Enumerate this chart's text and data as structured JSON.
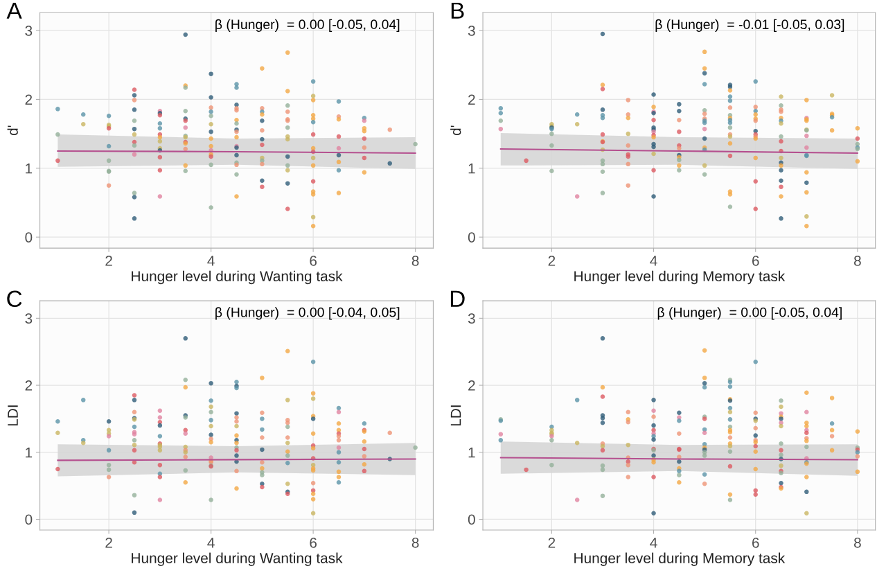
{
  "chart_data": [
    {
      "type": "scatter",
      "title": "A",
      "xlabel": "Hunger level during Wanting task",
      "ylabel": "d'",
      "annotations": [
        "β (Hunger)  = 0.00 [-0.05, 0.04]"
      ],
      "xlim": [
        0.65,
        8.35
      ],
      "ylim": [
        -0.16,
        3.26
      ],
      "xticks": [
        2,
        4,
        6,
        8
      ],
      "yticks": [
        0,
        1,
        2,
        3
      ],
      "grid": true,
      "series": [
        {
          "marker": "circle",
          "x": [
            1,
            1,
            1,
            1.5,
            1.5,
            2,
            2,
            2,
            2,
            2,
            2,
            2,
            2,
            2,
            2.5,
            2.5,
            2.5,
            2.5,
            2.5,
            2.5,
            2.5,
            2.5,
            2.5,
            2.5,
            2.5,
            2.5,
            2.5,
            3,
            3,
            3,
            3,
            3,
            3,
            3,
            3,
            3,
            3,
            3,
            3,
            3,
            3.5,
            3.5,
            3.5,
            3.5,
            3.5,
            3.5,
            3.5,
            3.5,
            3.5,
            3.5,
            3.5,
            3.5,
            3.5,
            3.5,
            4,
            4,
            4,
            4,
            4,
            4,
            4,
            4,
            4,
            4,
            4,
            4,
            4,
            4,
            4.5,
            4.5,
            4.5,
            4.5,
            4.5,
            4.5,
            4.5,
            4.5,
            4.5,
            4.5,
            4.5,
            4.5,
            4.5,
            4.5,
            4.5,
            4.5,
            4.5,
            5,
            5,
            5,
            5,
            5,
            5,
            5,
            5,
            5,
            5,
            5,
            5,
            5,
            5.5,
            5.5,
            5.5,
            5.5,
            5.5,
            5.5,
            5.5,
            5.5,
            5.5,
            5.5,
            5.5,
            5.5,
            5.5,
            5.5,
            6,
            6,
            6,
            6,
            6,
            6,
            6,
            6,
            6,
            6,
            6,
            6,
            6,
            6,
            6,
            6,
            6.5,
            6.5,
            6.5,
            6.5,
            6.5,
            6.5,
            6.5,
            6.5,
            6.5,
            7,
            7,
            7,
            7,
            7,
            7,
            7,
            7,
            7.5,
            7.5,
            8
          ],
          "values": [
            1.86,
            1.49,
            1.11,
            1.78,
            1.64,
            1.76,
            1.63,
            1.61,
            1.58,
            1.32,
            1.11,
            0.96,
            0.95,
            0.75,
            2.14,
            2.06,
            1.99,
            1.85,
            1.69,
            1.57,
            1.49,
            1.38,
            1.33,
            1.2,
            0.64,
            0.58,
            0.27,
            1.83,
            1.8,
            1.77,
            1.65,
            1.58,
            1.49,
            1.45,
            1.39,
            1.29,
            1.26,
            1.16,
            0.97,
            0.59,
            2.94,
            2.2,
            2.17,
            1.83,
            1.72,
            1.69,
            1.59,
            1.47,
            1.45,
            1.38,
            1.36,
            1.28,
            1.04,
            0.96,
            2.37,
            2.03,
            1.88,
            1.82,
            1.76,
            1.64,
            1.53,
            1.43,
            1.32,
            1.26,
            1.2,
            1.17,
            1.05,
            0.43,
            2.22,
            2.17,
            1.92,
            1.87,
            1.84,
            1.7,
            1.65,
            1.56,
            1.53,
            1.45,
            1.32,
            1.3,
            1.19,
            1.08,
            1.05,
            0.91,
            0.59,
            2.45,
            1.87,
            1.82,
            1.78,
            1.69,
            1.55,
            1.42,
            1.34,
            1.15,
            1.11,
            1.06,
            0.82,
            0.73,
            2.68,
            2.12,
            1.91,
            1.82,
            1.71,
            1.69,
            1.59,
            1.46,
            1.42,
            1.17,
            1.04,
            0.97,
            0.78,
            0.41,
            2.26,
            2.05,
            1.99,
            1.77,
            1.72,
            1.67,
            1.49,
            1.29,
            1.24,
            1.15,
            1.04,
            0.81,
            0.66,
            0.62,
            0.29,
            0.16,
            1.97,
            1.75,
            1.71,
            1.46,
            1.29,
            1.19,
            1.09,
            0.97,
            0.64,
            1.73,
            1.69,
            1.58,
            1.54,
            1.43,
            1.3,
            1.15,
            0.94,
            1.56,
            1.07,
            1.35
          ],
          "colors": [
            "#5b94a8",
            "#93b09a",
            "#dc5a62",
            "#5b94a8",
            "#c9b562",
            "#5b94a8",
            "#c9b562",
            "#c9b562",
            "#dc5a62",
            "#5b94a8",
            "#93b09a",
            "#93b09a",
            "#93b09a",
            "#ee9475",
            "#dc5a62",
            "#2f5d78",
            "#ee9475",
            "#2f5d78",
            "#93b09a",
            "#2f5d78",
            "#c9b562",
            "#dc5a62",
            "#93b09a",
            "#e083a0",
            "#93b09a",
            "#2f5d78",
            "#2f5d78",
            "#e083a0",
            "#2f5d78",
            "#dc5a62",
            "#5b94a8",
            "#5b94a8",
            "#dc5a62",
            "#f3a745",
            "#c9b562",
            "#c9b562",
            "#2f5d78",
            "#dc5a62",
            "#dc5a62",
            "#e083a0",
            "#2f5d78",
            "#f3a745",
            "#93b09a",
            "#93b09a",
            "#2f5d78",
            "#dc5a62",
            "#e083a0",
            "#93b09a",
            "#c9b562",
            "#dc5a62",
            "#f3a745",
            "#ee9475",
            "#f3a745",
            "#93b09a",
            "#2f5d78",
            "#2f5d78",
            "#ee9475",
            "#5b94a8",
            "#93b09a",
            "#c9b562",
            "#2f5d78",
            "#f3a745",
            "#f3a745",
            "#e083a0",
            "#f3a745",
            "#dc5a62",
            "#93b09a",
            "#93b09a",
            "#5b94a8",
            "#5b94a8",
            "#2f5d78",
            "#ee9475",
            "#ee9475",
            "#f3a745",
            "#93b09a",
            "#2f5d78",
            "#ee9475",
            "#f3a745",
            "#e083a0",
            "#2f5d78",
            "#2f5d78",
            "#93b09a",
            "#ee9475",
            "#93b09a",
            "#f3a745",
            "#f3a745",
            "#ee9475",
            "#5b94a8",
            "#f3a745",
            "#2f5d78",
            "#ee9475",
            "#2f5d78",
            "#dc5a62",
            "#c9b562",
            "#93b09a",
            "#ee9475",
            "#2f5d78",
            "#dc5a62",
            "#f3a745",
            "#f3a745",
            "#93b09a",
            "#ee9475",
            "#ee9475",
            "#ee9475",
            "#93b09a",
            "#c9b562",
            "#c9b562",
            "#2f5d78",
            "#93b09a",
            "#c9b562",
            "#2f5d78",
            "#dc5a62",
            "#5b94a8",
            "#c9b562",
            "#f3a745",
            "#f3a745",
            "#f3a745",
            "#5b94a8",
            "#dc5a62",
            "#f3a745",
            "#dc5a62",
            "#c9b562",
            "#f3a745",
            "#dc5a62",
            "#f3a745",
            "#f3a745",
            "#c9b562",
            "#f3a745",
            "#5b94a8",
            "#ee9475",
            "#f3a745",
            "#dc5a62",
            "#e083a0",
            "#2f5d78",
            "#f3a745",
            "#5b94a8",
            "#f3a745",
            "#5b94a8",
            "#e083a0",
            "#f3a745",
            "#f3a745",
            "#dc5a62",
            "#ee9475",
            "#dc5a62",
            "#f3a745",
            "#ee9475",
            "#2f5d78",
            "#93b09a"
          ]
        },
        {
          "type": "line",
          "color": "#b5508f",
          "x": [
            1,
            4.5,
            8
          ],
          "values": [
            1.25,
            1.24,
            1.22
          ],
          "lower": [
            1.02,
            1.05,
            0.99
          ],
          "upper": [
            1.49,
            1.43,
            1.45
          ]
        }
      ]
    },
    {
      "type": "scatter",
      "title": "B",
      "xlabel": "Hunger level during Memory task",
      "ylabel": "d'",
      "annotations": [
        "β (Hunger)  = -0.01 [-0.05, 0.03]"
      ],
      "xlim": [
        0.65,
        8.35
      ],
      "ylim": [
        -0.16,
        3.26
      ],
      "xticks": [
        2,
        4,
        6,
        8
      ],
      "yticks": [
        0,
        1,
        2,
        3
      ],
      "grid": true,
      "series": [
        {
          "marker": "circle",
          "x": [
            1,
            1,
            1,
            1,
            1.5,
            2,
            2,
            2,
            2,
            2,
            2,
            2,
            2.5,
            2.5,
            2.5,
            3,
            3,
            3,
            3,
            3,
            3,
            3,
            3,
            3,
            3,
            3,
            3,
            3,
            3,
            3.5,
            3.5,
            3.5,
            3.5,
            3.5,
            3.5,
            3.5,
            3.5,
            3.5,
            4,
            4,
            4,
            4,
            4,
            4,
            4,
            4,
            4,
            4,
            4,
            4,
            4,
            4,
            4,
            4.5,
            4.5,
            4.5,
            4.5,
            4.5,
            4.5,
            4.5,
            4.5,
            4.5,
            4.5,
            4.5,
            5,
            5,
            5,
            5,
            5,
            5,
            5,
            5,
            5,
            5,
            5,
            5,
            5,
            5,
            5,
            5.5,
            5.5,
            5.5,
            5.5,
            5.5,
            5.5,
            5.5,
            5.5,
            5.5,
            5.5,
            5.5,
            5.5,
            5.5,
            5.5,
            5.5,
            5.5,
            5.5,
            5.5,
            6,
            6,
            6,
            6,
            6,
            6,
            6,
            6,
            6,
            6,
            6,
            6,
            6,
            6.5,
            6.5,
            6.5,
            6.5,
            6.5,
            6.5,
            6.5,
            6.5,
            6.5,
            6.5,
            6.5,
            6.5,
            6.5,
            6.5,
            6.5,
            6.5,
            6.5,
            6.5,
            7,
            7,
            7,
            7,
            7,
            7,
            7,
            7,
            7,
            7,
            7,
            7,
            7,
            7,
            7,
            7.5,
            7.5,
            7.5,
            7.5,
            7.5,
            8,
            8,
            8,
            8,
            8,
            8
          ],
          "values": [
            1.87,
            1.8,
            1.69,
            1.57,
            1.11,
            1.64,
            1.61,
            1.59,
            1.57,
            1.5,
            1.33,
            0.96,
            1.78,
            1.64,
            0.59,
            2.95,
            2.21,
            2.15,
            1.85,
            1.77,
            1.73,
            1.49,
            1.39,
            1.38,
            1.27,
            1.11,
            1.06,
            0.95,
            0.64,
            1.99,
            1.78,
            1.73,
            1.5,
            1.33,
            1.2,
            1.17,
            1.06,
            0.75,
            2.07,
            1.89,
            1.82,
            1.8,
            1.7,
            1.59,
            1.56,
            1.53,
            1.48,
            1.45,
            1.35,
            1.31,
            1.21,
            0.97,
            0.59,
            1.93,
            1.83,
            1.7,
            1.53,
            1.33,
            1.29,
            1.19,
            1.16,
            1.12,
            1.04,
            0.97,
            2.69,
            2.45,
            2.38,
            2.22,
            1.84,
            1.79,
            1.72,
            1.69,
            1.66,
            1.57,
            1.43,
            1.3,
            1.27,
            1.04,
            0.91,
            2.21,
            2.18,
            2.13,
            2.04,
            1.98,
            1.88,
            1.77,
            1.73,
            1.7,
            1.66,
            1.59,
            1.49,
            1.46,
            1.36,
            1.18,
            0.66,
            0.62,
            0.44,
            2.26,
            1.89,
            1.83,
            1.78,
            1.72,
            1.69,
            1.54,
            1.49,
            1.46,
            1.43,
            1.15,
            0.81,
            0.41,
            2.04,
            1.91,
            1.85,
            1.82,
            1.73,
            1.69,
            1.65,
            1.46,
            1.39,
            1.25,
            1.15,
            1.08,
            1.04,
            0.97,
            0.82,
            0.73,
            0.59,
            0.27,
            1.99,
            1.73,
            1.71,
            1.69,
            1.56,
            1.55,
            1.47,
            1.3,
            1.19,
            1.18,
            0.94,
            0.79,
            0.65,
            0.3,
            0.16,
            2.06,
            1.79,
            1.77,
            1.74,
            1.55,
            1.58,
            1.43,
            1.35,
            1.3,
            1.28,
            1.1
          ],
          "colors": [
            "#5b94a8",
            "#5b94a8",
            "#93b09a",
            "#e083a0",
            "#dc5a62",
            "#c9b562",
            "#c9b562",
            "#2f5d78",
            "#5b94a8",
            "#93b09a",
            "#93b09a",
            "#93b09a",
            "#5b94a8",
            "#c9b562",
            "#e083a0",
            "#2f5d78",
            "#f3a745",
            "#dc5a62",
            "#2f5d78",
            "#5b94a8",
            "#5b94a8",
            "#dc5a62",
            "#f3a745",
            "#dc5a62",
            "#c9b562",
            "#93b09a",
            "#93b09a",
            "#93b09a",
            "#93b09a",
            "#ee9475",
            "#ee9475",
            "#f3a745",
            "#c9b562",
            "#ee9475",
            "#dc5a62",
            "#dc5a62",
            "#ee9475",
            "#ee9475",
            "#2f5d78",
            "#f3a745",
            "#e083a0",
            "#2f5d78",
            "#dc5a62",
            "#2f5d78",
            "#2f5d78",
            "#e083a0",
            "#dc5a62",
            "#f3a745",
            "#2f5d78",
            "#2f5d78",
            "#c9b562",
            "#dc5a62",
            "#2f5d78",
            "#2f5d78",
            "#2f5d78",
            "#ee9475",
            "#dc5a62",
            "#dc5a62",
            "#ee9475",
            "#2f5d78",
            "#f3a745",
            "#93b09a",
            "#f3a745",
            "#93b09a",
            "#f3a745",
            "#f3a745",
            "#2f5d78",
            "#5b94a8",
            "#93b09a",
            "#ee9475",
            "#ee9475",
            "#5b94a8",
            "#5b94a8",
            "#e083a0",
            "#2f5d78",
            "#f3a745",
            "#5b94a8",
            "#c9b562",
            "#93b09a",
            "#2f5d78",
            "#2f5d78",
            "#f3a745",
            "#5b94a8",
            "#5b94a8",
            "#ee9475",
            "#93b09a",
            "#f3a745",
            "#5b94a8",
            "#5b94a8",
            "#93b09a",
            "#ee9475",
            "#c9b562",
            "#f3a745",
            "#dc5a62",
            "#f3a745",
            "#f3a745",
            "#93b09a",
            "#5b94a8",
            "#ee9475",
            "#5b94a8",
            "#f3a745",
            "#f3a745",
            "#ee9475",
            "#2f5d78",
            "#dc5a62",
            "#ee9475",
            "#f3a745",
            "#f3a745",
            "#dc5a62",
            "#dc5a62",
            "#c9b562",
            "#93b09a",
            "#ee9475",
            "#ee9475",
            "#f3a745",
            "#5b94a8",
            "#c9b562",
            "#93b09a",
            "#dc5a62",
            "#dc5a62",
            "#c9b562",
            "#2f5d78",
            "#f3a745",
            "#2f5d78",
            "#2f5d78",
            "#dc5a62",
            "#f3a745",
            "#2f5d78",
            "#f3a745",
            "#e083a0",
            "#f3a745",
            "#f3a745",
            "#c9b562",
            "#93b09a",
            "#e083a0",
            "#e083a0",
            "#5b94a8",
            "#5b94a8",
            "#f3a745",
            "#2f5d78",
            "#f3a745",
            "#c9b562",
            "#f3a745",
            "#c9b562",
            "#f3a745",
            "#f3a745",
            "#5b94a8",
            "#f3a745",
            "#f3a745",
            "#dc5a62",
            "#93b09a",
            "#5b94a8",
            "#93b09a",
            "#f3a745"
          ]
        },
        {
          "type": "line",
          "color": "#b5508f",
          "x": [
            1,
            4.5,
            8
          ],
          "values": [
            1.28,
            1.25,
            1.22
          ],
          "lower": [
            1.04,
            1.05,
            0.99
          ],
          "upper": [
            1.51,
            1.45,
            1.43
          ]
        }
      ]
    },
    {
      "type": "scatter",
      "title": "C",
      "xlabel": "Hunger level during Wanting task",
      "ylabel": "LDI",
      "annotations": [
        "β (Hunger)  = 0.00 [-0.04, 0.05]"
      ],
      "xlim": [
        0.65,
        8.35
      ],
      "ylim": [
        -0.16,
        3.26
      ],
      "xticks": [
        2,
        4,
        6,
        8
      ],
      "yticks": [
        0,
        1,
        2,
        3
      ],
      "grid": true,
      "series": [
        {
          "marker": "circle",
          "x": [
            1,
            1,
            1,
            1.5,
            1.5,
            1.5,
            2,
            2,
            2,
            2,
            2,
            2,
            2,
            2,
            2.5,
            2.5,
            2.5,
            2.5,
            2.5,
            2.5,
            2.5,
            2.5,
            2.5,
            2.5,
            2.5,
            2.5,
            2.5,
            2.5,
            3,
            3,
            3,
            3,
            3,
            3,
            3,
            3,
            3,
            3,
            3,
            3,
            3,
            3.5,
            3.5,
            3.5,
            3.5,
            3.5,
            3.5,
            3.5,
            3.5,
            3.5,
            3.5,
            3.5,
            3.5,
            3.5,
            4,
            4,
            4,
            4,
            4,
            4,
            4,
            4,
            4,
            4,
            4,
            4,
            4,
            4,
            4,
            4.5,
            4.5,
            4.5,
            4.5,
            4.5,
            4.5,
            4.5,
            4.5,
            4.5,
            4.5,
            4.5,
            4.5,
            4.5,
            4.5,
            4.5,
            4.5,
            5,
            5,
            5,
            5,
            5,
            5,
            5,
            5,
            5,
            5,
            5,
            5,
            5.5,
            5.5,
            5.5,
            5.5,
            5.5,
            5.5,
            5.5,
            5.5,
            5.5,
            5.5,
            5.5,
            5.5,
            5.5,
            6,
            6,
            6,
            6,
            6,
            6,
            6,
            6,
            6,
            6,
            6,
            6,
            6,
            6,
            6,
            6,
            6,
            6.5,
            6.5,
            6.5,
            6.5,
            6.5,
            6.5,
            6.5,
            6.5,
            6.5,
            6.5,
            6.5,
            6.5,
            6.5,
            7,
            7,
            7,
            7,
            7,
            7,
            7,
            7,
            7.5,
            7.5,
            8
          ],
          "values": [
            1.46,
            1.29,
            0.75,
            1.78,
            1.18,
            1.14,
            1.46,
            1.33,
            1.28,
            1.24,
            1.03,
            0.81,
            0.74,
            0.63,
            1.85,
            1.78,
            1.6,
            1.51,
            1.49,
            1.38,
            1.3,
            1.27,
            1.18,
            1.11,
            1.03,
            0.85,
            0.36,
            0.1,
            1.62,
            1.52,
            1.45,
            1.4,
            1.24,
            1.13,
            1.11,
            1.08,
            1.03,
            0.81,
            0.68,
            0.63,
            0.29,
            2.7,
            2.08,
            1.97,
            1.55,
            1.52,
            1.33,
            1.28,
            1.08,
            1.03,
            1.0,
            0.93,
            0.73,
            0.55,
            2.03,
            1.77,
            1.68,
            1.6,
            1.48,
            1.39,
            1.26,
            1.2,
            1.15,
            0.92,
            0.87,
            0.85,
            0.8,
            0.79,
            0.29,
            2.05,
            1.99,
            1.96,
            1.58,
            1.52,
            1.46,
            1.39,
            1.25,
            1.18,
            1.14,
            1.07,
            1.03,
            0.95,
            0.86,
            0.72,
            0.46,
            2.11,
            1.59,
            1.5,
            1.34,
            1.22,
            1.04,
            0.85,
            0.76,
            0.7,
            0.66,
            0.53,
            0.48,
            2.51,
            1.78,
            1.48,
            1.44,
            1.38,
            1.22,
            1.14,
            1.01,
            0.95,
            0.84,
            0.53,
            0.41,
            0.38,
            2.35,
            1.88,
            1.8,
            1.54,
            1.5,
            1.28,
            1.1,
            1.06,
            0.91,
            0.81,
            0.76,
            0.73,
            0.54,
            0.43,
            0.38,
            0.3,
            0.09,
            1.66,
            1.6,
            1.43,
            1.33,
            1.28,
            1.24,
            1.18,
            1.07,
            1.0,
            0.85,
            0.71,
            0.63,
            0.55,
            1.43,
            1.33,
            1.31,
            1.16,
            1.05,
            0.94,
            0.82,
            0.72,
            1.29,
            0.9,
            1.07
          ],
          "colors": [
            "#5b94a8",
            "#c9b562",
            "#dc5a62",
            "#5b94a8",
            "#5b94a8",
            "#c9b562",
            "#2f5d78",
            "#c9b562",
            "#c9b562",
            "#e083a0",
            "#5b94a8",
            "#93b09a",
            "#93b09a",
            "#ee9475",
            "#dc5a62",
            "#2f5d78",
            "#ee9475",
            "#2f5d78",
            "#c9b562",
            "#5b94a8",
            "#e083a0",
            "#e083a0",
            "#93b09a",
            "#c9b562",
            "#dc5a62",
            "#dc5a62",
            "#93b09a",
            "#2f5d78",
            "#e083a0",
            "#e083a0",
            "#dc5a62",
            "#2f5d78",
            "#5b94a8",
            "#dc5a62",
            "#c9b562",
            "#c9b562",
            "#c9b562",
            "#dc5a62",
            "#5b94a8",
            "#dc5a62",
            "#e083a0",
            "#2f5d78",
            "#93b09a",
            "#f3a745",
            "#2f5d78",
            "#93b09a",
            "#dc5a62",
            "#e083a0",
            "#c9b562",
            "#ee9475",
            "#c9b562",
            "#ee9475",
            "#93b09a",
            "#f3a745",
            "#2f5d78",
            "#5b94a8",
            "#c9b562",
            "#93b09a",
            "#5b94a8",
            "#c9b562",
            "#2f5d78",
            "#ee9475",
            "#f3a745",
            "#e083a0",
            "#f3a745",
            "#ee9475",
            "#93b09a",
            "#dc5a62",
            "#93b09a",
            "#5b94a8",
            "#2f5d78",
            "#5b94a8",
            "#2f5d78",
            "#ee9475",
            "#ee9475",
            "#c9b562",
            "#f3a745",
            "#2f5d78",
            "#f3a745",
            "#93b09a",
            "#dc5a62",
            "#2f5d78",
            "#2f5d78",
            "#ee9475",
            "#f3a745",
            "#f3a745",
            "#ee9475",
            "#5b94a8",
            "#5b94a8",
            "#ee9475",
            "#2f5d78",
            "#ee9475",
            "#f3a745",
            "#93b09a",
            "#93b09a",
            "#2f5d78",
            "#dc5a62",
            "#f3a745",
            "#c9b562",
            "#ee9475",
            "#ee9475",
            "#93b09a",
            "#ee9475",
            "#c9b562",
            "#f3a745",
            "#93b09a",
            "#5b94a8",
            "#c9b562",
            "#2f5d78",
            "#dc5a62",
            "#5b94a8",
            "#f3a745",
            "#c9b562",
            "#f3a745",
            "#2f5d78",
            "#f3a745",
            "#dc5a62",
            "#f3a745",
            "#dc5a62",
            "#c9b562",
            "#f3a745",
            "#f3a745",
            "#ee9475",
            "#dc5a62",
            "#f3a745",
            "#f3a745",
            "#c9b562",
            "#5b94a8",
            "#e083a0",
            "#f3a745",
            "#f3a745",
            "#dc5a62",
            "#ee9475",
            "#ee9475",
            "#e083a0",
            "#5b94a8",
            "#5b94a8",
            "#f3a745",
            "#f3a745",
            "#5b94a8",
            "#5b94a8",
            "#dc5a62",
            "#f3a745",
            "#f3a745",
            "#dc5a62",
            "#ee9475",
            "#f3a745",
            "#dc5a62",
            "#ee9475",
            "#2f5d78",
            "#93b09a"
          ]
        },
        {
          "type": "line",
          "color": "#b5508f",
          "x": [
            1,
            4.5,
            8
          ],
          "values": [
            0.88,
            0.89,
            0.9
          ],
          "lower": [
            0.64,
            0.7,
            0.66
          ],
          "upper": [
            1.12,
            1.09,
            1.14
          ]
        }
      ]
    },
    {
      "type": "scatter",
      "title": "D",
      "xlabel": "Hunger level during Memory task",
      "ylabel": "LDI",
      "annotations": [
        "β (Hunger)  = 0.00 [-0.05, 0.04]"
      ],
      "xlim": [
        0.65,
        8.35
      ],
      "ylim": [
        -0.16,
        3.26
      ],
      "xticks": [
        2,
        4,
        6,
        8
      ],
      "yticks": [
        0,
        1,
        2,
        3
      ],
      "grid": true,
      "series": [
        {
          "marker": "circle",
          "x": [
            1,
            1,
            1,
            1,
            1.5,
            2,
            2,
            2,
            2,
            2,
            2,
            2,
            2.5,
            2.5,
            2.5,
            3,
            3,
            3,
            3,
            3,
            3,
            3,
            3,
            3,
            3,
            3,
            3,
            3.5,
            3.5,
            3.5,
            3.5,
            3.5,
            3.5,
            3.5,
            3.5,
            4,
            4,
            4,
            4,
            4,
            4,
            4,
            4,
            4,
            4,
            4,
            4,
            4,
            4,
            4,
            4.5,
            4.5,
            4.5,
            4.5,
            4.5,
            4.5,
            4.5,
            4.5,
            4.5,
            4.5,
            4.5,
            4.5,
            5,
            5,
            5,
            5,
            5,
            5,
            5,
            5,
            5,
            5,
            5,
            5,
            5,
            5,
            5,
            5.5,
            5.5,
            5.5,
            5.5,
            5.5,
            5.5,
            5.5,
            5.5,
            5.5,
            5.5,
            5.5,
            5.5,
            5.5,
            5.5,
            5.5,
            5.5,
            5.5,
            5.5,
            6,
            6,
            6,
            6,
            6,
            6,
            6,
            6,
            6,
            6,
            6,
            6,
            6,
            6.5,
            6.5,
            6.5,
            6.5,
            6.5,
            6.5,
            6.5,
            6.5,
            6.5,
            6.5,
            6.5,
            6.5,
            6.5,
            6.5,
            6.5,
            6.5,
            6.5,
            7,
            7,
            7,
            7,
            7,
            7,
            7,
            7,
            7,
            7,
            7,
            7,
            7,
            7,
            7,
            7.5,
            7.5,
            7.5,
            7.5,
            7.5,
            8,
            8,
            8,
            8,
            8,
            8
          ],
          "values": [
            1.49,
            1.47,
            1.27,
            1.18,
            0.74,
            1.38,
            1.33,
            1.29,
            1.27,
            1.24,
            1.18,
            0.81,
            1.78,
            1.14,
            0.29,
            2.7,
            1.97,
            1.83,
            1.55,
            1.51,
            1.44,
            1.13,
            1.09,
            1.03,
            0.8,
            0.74,
            0.35,
            1.6,
            1.49,
            1.45,
            1.11,
            0.92,
            0.86,
            0.81,
            0.63,
            1.78,
            1.62,
            1.53,
            1.4,
            1.33,
            1.28,
            1.24,
            1.19,
            1.05,
            1.03,
            0.95,
            0.89,
            0.85,
            0.63,
            0.09,
            1.59,
            1.52,
            1.47,
            1.28,
            1.05,
            1.04,
            0.93,
            0.86,
            0.76,
            0.72,
            0.66,
            0.55,
            2.52,
            2.11,
            2.03,
            1.97,
            1.53,
            1.5,
            1.34,
            1.29,
            1.12,
            1.07,
            1.04,
            1.0,
            0.95,
            0.67,
            0.53,
            2.08,
            2.05,
            1.98,
            1.79,
            1.77,
            1.66,
            1.6,
            1.49,
            1.38,
            1.33,
            1.3,
            1.22,
            1.13,
            1.09,
            1.01,
            0.79,
            0.37,
            0.29,
            2.35,
            1.59,
            1.5,
            1.47,
            1.36,
            1.25,
            1.18,
            1.15,
            1.09,
            1.01,
            0.75,
            0.43,
            0.37,
            1.77,
            1.68,
            1.58,
            1.53,
            1.5,
            1.44,
            1.39,
            1.13,
            1.03,
            0.96,
            0.9,
            0.8,
            0.72,
            0.69,
            0.54,
            0.48,
            0.46,
            1.89,
            1.6,
            1.44,
            1.39,
            1.33,
            1.29,
            1.21,
            1.17,
            1.08,
            0.91,
            0.85,
            0.83,
            0.63,
            0.41,
            0.09,
            1.81,
            1.43,
            1.33,
            1.24,
            1.03,
            1.31,
            1.07,
            1.04,
            1.0,
            0.94,
            0.71
          ],
          "colors": [
            "#93b09a",
            "#5b94a8",
            "#e083a0",
            "#5b94a8",
            "#dc5a62",
            "#5b94a8",
            "#c9b562",
            "#c9b562",
            "#c9b562",
            "#e083a0",
            "#93b09a",
            "#93b09a",
            "#5b94a8",
            "#c9b562",
            "#e083a0",
            "#2f5d78",
            "#f3a745",
            "#dc5a62",
            "#2f5d78",
            "#2f5d78",
            "#2f5d78",
            "#ee9475",
            "#c9b562",
            "#dc5a62",
            "#93b09a",
            "#93b09a",
            "#93b09a",
            "#ee9475",
            "#f3a745",
            "#ee9475",
            "#c9b562",
            "#ee9475",
            "#dc5a62",
            "#ee9475",
            "#ee9475",
            "#2f5d78",
            "#e083a0",
            "#ee9475",
            "#2f5d78",
            "#dc5a62",
            "#e083a0",
            "#5b94a8",
            "#2f5d78",
            "#dc5a62",
            "#93b09a",
            "#2f5d78",
            "#f3a745",
            "#f3a745",
            "#dc5a62",
            "#2f5d78",
            "#2f5d78",
            "#e083a0",
            "#5b94a8",
            "#ee9475",
            "#dc5a62",
            "#dc5a62",
            "#ee9475",
            "#2f5d78",
            "#f3a745",
            "#5b94a8",
            "#93b09a",
            "#f3a745",
            "#f3a745",
            "#f3a745",
            "#2f5d78",
            "#5b94a8",
            "#93b09a",
            "#dc5a62",
            "#5b94a8",
            "#e083a0",
            "#5b94a8",
            "#f3a745",
            "#2f5d78",
            "#93b09a",
            "#93b09a",
            "#5b94a8",
            "#ee9475",
            "#93b09a",
            "#5b94a8",
            "#5b94a8",
            "#f3a745",
            "#2f5d78",
            "#5b94a8",
            "#c9b562",
            "#5b94a8",
            "#93b09a",
            "#f3a745",
            "#f3a745",
            "#ee9475",
            "#f3a745",
            "#c9b562",
            "#93b09a",
            "#dc5a62",
            "#f3a745",
            "#93b09a",
            "#5b94a8",
            "#ee9475",
            "#2f5d78",
            "#c9b562",
            "#ee9475",
            "#2f5d78",
            "#ee9475",
            "#f3a745",
            "#dc5a62",
            "#f3a745",
            "#f3a745",
            "#dc5a62",
            "#dc5a62",
            "#93b09a",
            "#c9b562",
            "#e083a0",
            "#f3a745",
            "#2f5d78",
            "#e083a0",
            "#c9b562",
            "#93b09a",
            "#dc5a62",
            "#93b09a",
            "#2f5d78",
            "#c9b562",
            "#dc5a62",
            "#93b09a",
            "#2f5d78",
            "#dc5a62",
            "#f3a745",
            "#f3a745",
            "#e083a0",
            "#f3a745",
            "#f3a745",
            "#e083a0",
            "#dc5a62",
            "#ee9475",
            "#f3a745",
            "#93b09a",
            "#e083a0",
            "#5b94a8",
            "#f3a745",
            "#f3a745",
            "#2f5d78",
            "#c9b562",
            "#f3a745",
            "#5b94a8",
            "#f3a745",
            "#ee9475",
            "#f3a745",
            "#f3a745",
            "#93b09a",
            "#dc5a62",
            "#5b94a8",
            "#ee9475",
            "#f3a745"
          ]
        },
        {
          "type": "line",
          "color": "#b5508f",
          "x": [
            1,
            4.5,
            8
          ],
          "values": [
            0.92,
            0.9,
            0.89
          ],
          "lower": [
            0.68,
            0.72,
            0.65
          ],
          "upper": [
            1.16,
            1.11,
            1.12
          ]
        }
      ]
    }
  ]
}
